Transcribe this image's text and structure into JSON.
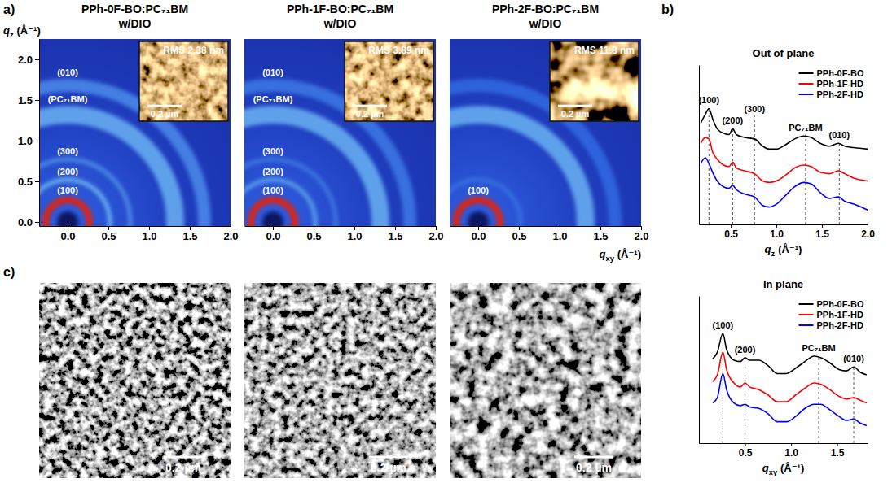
{
  "panel_labels": [
    "a)",
    "b)",
    "c)"
  ],
  "chart_data": [
    {
      "type": "ring_pattern",
      "title": "PPh-0F-BO:PC₇₁BM",
      "subtitle": "w/DIO",
      "ylabel": {
        "symbol": "q",
        "subscript": "z",
        "unit": "(Å⁻¹)"
      },
      "xlim": [
        -0.35,
        2.0
      ],
      "ylim": [
        -0.05,
        2.25
      ],
      "xticks": [
        {
          "value": 0,
          "label": "0.0"
        },
        0.5,
        {
          "value": 1,
          "label": "1.0"
        },
        1.5,
        {
          "value": 2,
          "label": "2.0"
        }
      ],
      "yticks": [
        {
          "value": 0,
          "label": "0.0"
        },
        0.5,
        {
          "value": 1,
          "label": "1.0"
        },
        1.5,
        {
          "value": 2,
          "label": "2.0"
        }
      ],
      "rings": [
        {
          "q": 0.27,
          "width": 0.08,
          "intensity": 1.0,
          "label": "(100)"
        },
        {
          "q": 0.52,
          "width": 0.05,
          "intensity": 0.55,
          "label": "(200)"
        },
        {
          "q": 0.77,
          "width": 0.05,
          "intensity": 0.45,
          "label": "(300)"
        },
        {
          "q": 1.32,
          "width": 0.22,
          "intensity": 0.5,
          "label": "(PC₇₁BM)"
        },
        {
          "q": 1.68,
          "width": 0.16,
          "intensity": 0.42,
          "label": "(010)"
        }
      ],
      "inset": {
        "rms": 2.38,
        "rms_label": "RMS 2.38 nm",
        "scale_bar": "0.2 µm"
      }
    },
    {
      "type": "ring_pattern",
      "title": "PPh-1F-BO:PC₇₁BM",
      "subtitle": "w/DIO",
      "tick_labels": "x",
      "xlim": [
        -0.35,
        2.0
      ],
      "ylim": [
        -0.05,
        2.25
      ],
      "xticks": [
        {
          "value": 0,
          "label": "0.0"
        },
        0.5,
        {
          "value": 1,
          "label": "1.0"
        },
        1.5,
        {
          "value": 2,
          "label": "2.0"
        }
      ],
      "rings": [
        {
          "q": 0.27,
          "width": 0.08,
          "intensity": 1.0,
          "label": "(100)"
        },
        {
          "q": 0.52,
          "width": 0.05,
          "intensity": 0.5,
          "label": "(200)"
        },
        {
          "q": 0.77,
          "width": 0.05,
          "intensity": 0.4,
          "label": "(300)"
        },
        {
          "q": 1.32,
          "width": 0.22,
          "intensity": 0.5,
          "label": "(PC₇₁BM)"
        },
        {
          "q": 1.68,
          "width": 0.16,
          "intensity": 0.38,
          "label": "(010)"
        }
      ],
      "inset": {
        "rms": 3.89,
        "rms_label": "RMS 3.89 nm",
        "scale_bar": "0.2 µm"
      }
    },
    {
      "type": "ring_pattern",
      "title": "PPh-2F-BO:PC₇₁BM",
      "subtitle": "w/DIO",
      "tick_labels": "x",
      "xlabel": {
        "symbol": "q",
        "subscript": "xy",
        "unit": "(Å⁻¹)"
      },
      "xlim": [
        -0.35,
        2.0
      ],
      "ylim": [
        -0.05,
        2.25
      ],
      "xticks": [
        {
          "value": 0,
          "label": "0.0"
        },
        0.5,
        {
          "value": 1,
          "label": "1.0"
        },
        1.5,
        {
          "value": 2,
          "label": "2.0"
        }
      ],
      "rings": [
        {
          "q": 0.27,
          "width": 0.08,
          "intensity": 1.0,
          "label": "(100)"
        },
        {
          "q": 0.52,
          "width": 0.05,
          "intensity": 0.38
        },
        {
          "q": 1.32,
          "width": 0.22,
          "intensity": 0.5
        },
        {
          "q": 1.68,
          "width": 0.16,
          "intensity": 0.35
        }
      ],
      "inset": {
        "rms": 11.8,
        "rms_label": "RMS 11.8 nm",
        "scale_bar": "0.2 µm"
      }
    },
    {
      "type": "line",
      "title": "Out of plane",
      "xlabel": {
        "symbol": "q",
        "subscript": "z",
        "unit": "(Å⁻¹)"
      },
      "xlim": [
        0.15,
        2.0
      ],
      "ylim": [
        0,
        11
      ],
      "xticks": [
        0.5,
        {
          "value": 1,
          "label": "1.0"
        },
        1.5,
        {
          "value": 2,
          "label": "2.0"
        }
      ],
      "tick_labels": "x",
      "legend": "top-right",
      "x": [
        0.17,
        0.22,
        0.26,
        0.3,
        0.35,
        0.42,
        0.48,
        0.52,
        0.56,
        0.65,
        0.76,
        0.85,
        0.92,
        1.0,
        1.1,
        1.2,
        1.3,
        1.38,
        1.48,
        1.58,
        1.68,
        1.75,
        1.85,
        2.0
      ],
      "series": [
        {
          "name": "PPh-0F-BO",
          "color": "#000000",
          "values": [
            7.0,
            7.6,
            8.0,
            7.3,
            6.6,
            6.3,
            6.2,
            6.6,
            6.2,
            6.0,
            5.9,
            5.4,
            5.2,
            5.2,
            5.5,
            5.9,
            6.1,
            6.0,
            5.6,
            5.4,
            5.6,
            5.4,
            5.3,
            5.2
          ]
        },
        {
          "name": "PPh-1F-HD",
          "color": "#ff0000",
          "values": [
            5.6,
            6.0,
            5.9,
            5.0,
            4.5,
            4.1,
            4.0,
            4.3,
            3.9,
            3.7,
            3.5,
            3.0,
            2.9,
            3.0,
            3.4,
            3.9,
            4.1,
            4.0,
            3.6,
            3.5,
            3.7,
            3.5,
            3.2,
            3.0
          ]
        },
        {
          "name": "PPh-2F-HD",
          "color": "#0000ff",
          "values": [
            4.2,
            4.6,
            4.2,
            3.6,
            3.0,
            2.6,
            2.5,
            2.7,
            2.4,
            2.1,
            1.9,
            1.3,
            1.2,
            1.4,
            2.0,
            2.6,
            2.9,
            2.8,
            2.2,
            1.8,
            1.9,
            1.6,
            1.4,
            1.0
          ]
        }
      ],
      "annotations": [
        {
          "x": 0.26,
          "label": "(100)"
        },
        {
          "x": 0.52,
          "label": "(200)"
        },
        {
          "x": 0.76,
          "label": "(300)"
        },
        {
          "x": 1.32,
          "label": "PC₇₁BM"
        },
        {
          "x": 1.69,
          "label": "(010)"
        }
      ]
    },
    {
      "type": "line",
      "title": "In plane",
      "xlabel": {
        "symbol": "q",
        "subscript": "xy",
        "unit": "(Å⁻¹)"
      },
      "xlim": [
        0,
        1.83
      ],
      "ylim": [
        0,
        11
      ],
      "xticks": [
        0.5,
        {
          "value": 1,
          "label": "1.0"
        },
        1.5
      ],
      "tick_labels": "x",
      "legend": "top-right",
      "x": [
        0.15,
        0.2,
        0.26,
        0.3,
        0.38,
        0.45,
        0.5,
        0.55,
        0.65,
        0.75,
        0.85,
        0.95,
        1.05,
        1.15,
        1.25,
        1.32,
        1.42,
        1.52,
        1.6,
        1.68,
        1.75,
        1.82
      ],
      "series": [
        {
          "name": "PPh-0F-BO",
          "color": "#000000",
          "values": [
            6.3,
            6.8,
            8.2,
            7.0,
            6.2,
            6.1,
            6.4,
            6.2,
            6.2,
            5.8,
            5.2,
            5.2,
            5.6,
            6.1,
            6.5,
            6.4,
            6.0,
            5.5,
            5.4,
            5.7,
            5.3,
            5.1
          ]
        },
        {
          "name": "PPh-1F-HD",
          "color": "#ff0000",
          "values": [
            4.6,
            5.1,
            6.8,
            5.5,
            4.5,
            4.2,
            4.5,
            4.2,
            4.0,
            3.6,
            3.1,
            3.1,
            3.6,
            4.1,
            4.5,
            4.4,
            4.0,
            3.5,
            3.3,
            3.4,
            3.2,
            3.0
          ]
        },
        {
          "name": "PPh-2F-HD",
          "color": "#0000ff",
          "values": [
            3.0,
            3.4,
            5.2,
            4.0,
            3.0,
            2.8,
            2.9,
            2.7,
            2.6,
            2.2,
            1.6,
            1.6,
            2.0,
            2.6,
            2.9,
            2.9,
            2.5,
            2.0,
            1.7,
            1.8,
            1.5,
            1.3
          ]
        }
      ],
      "annotations": [
        {
          "x": 0.26,
          "label": "(100)"
        },
        {
          "x": 0.5,
          "label": "(200)"
        },
        {
          "x": 1.3,
          "label": "PC₇₁BM"
        },
        {
          "x": 1.68,
          "label": "(010)"
        }
      ]
    }
  ],
  "tem_images": [
    {
      "scale_bar": "0.2 µm"
    },
    {
      "scale_bar": "0.2 µm"
    },
    {
      "scale_bar": "0.2 µm"
    }
  ]
}
